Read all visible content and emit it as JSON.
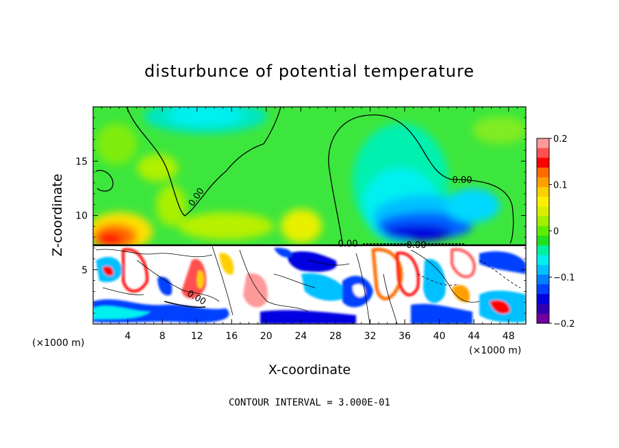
{
  "chart_data": {
    "type": "heatmap",
    "title": "disturbunce of potential temperature",
    "xlabel": "X-coordinate",
    "ylabel": "Z-coordinate",
    "x_unit_label_left": "(×1000 m)",
    "x_unit_label_right": "(×1000 m)",
    "xlim": [
      0,
      50
    ],
    "ylim": [
      0,
      20
    ],
    "x_ticks": [
      "4",
      "8",
      "12",
      "16",
      "20",
      "24",
      "28",
      "32",
      "36",
      "40",
      "44",
      "48"
    ],
    "x_tick_values": [
      4,
      8,
      12,
      16,
      20,
      24,
      28,
      32,
      36,
      40,
      44,
      48
    ],
    "y_ticks": [
      "5",
      "10",
      "15"
    ],
    "y_tick_values": [
      5,
      10,
      15
    ],
    "colorbar": {
      "min": -0.2,
      "max": 0.2,
      "tick_labels": [
        "0.2",
        "0.1",
        "0",
        "−0.1",
        "−0.2"
      ],
      "tick_values": [
        0.2,
        0.1,
        0,
        -0.1,
        -0.2
      ],
      "colors": [
        "#ff9a9a",
        "#ff5050",
        "#ff0000",
        "#ff6a00",
        "#ffa000",
        "#ffd000",
        "#fff000",
        "#d8f000",
        "#a0f000",
        "#60ec00",
        "#20e020",
        "#00f0a0",
        "#00f0f0",
        "#00c0ff",
        "#0080ff",
        "#0040ff",
        "#0000e0",
        "#3000b0",
        "#7000a0"
      ]
    },
    "contour_labels": [
      "0.00",
      "0.00",
      "0.00",
      "0.00",
      "0.00"
    ],
    "contour_label_values": [
      0,
      0,
      0,
      0,
      0
    ],
    "contour_interval_text": "CONTOUR INTERVAL = 3.000E-01",
    "boundary_z": 7.2
  }
}
